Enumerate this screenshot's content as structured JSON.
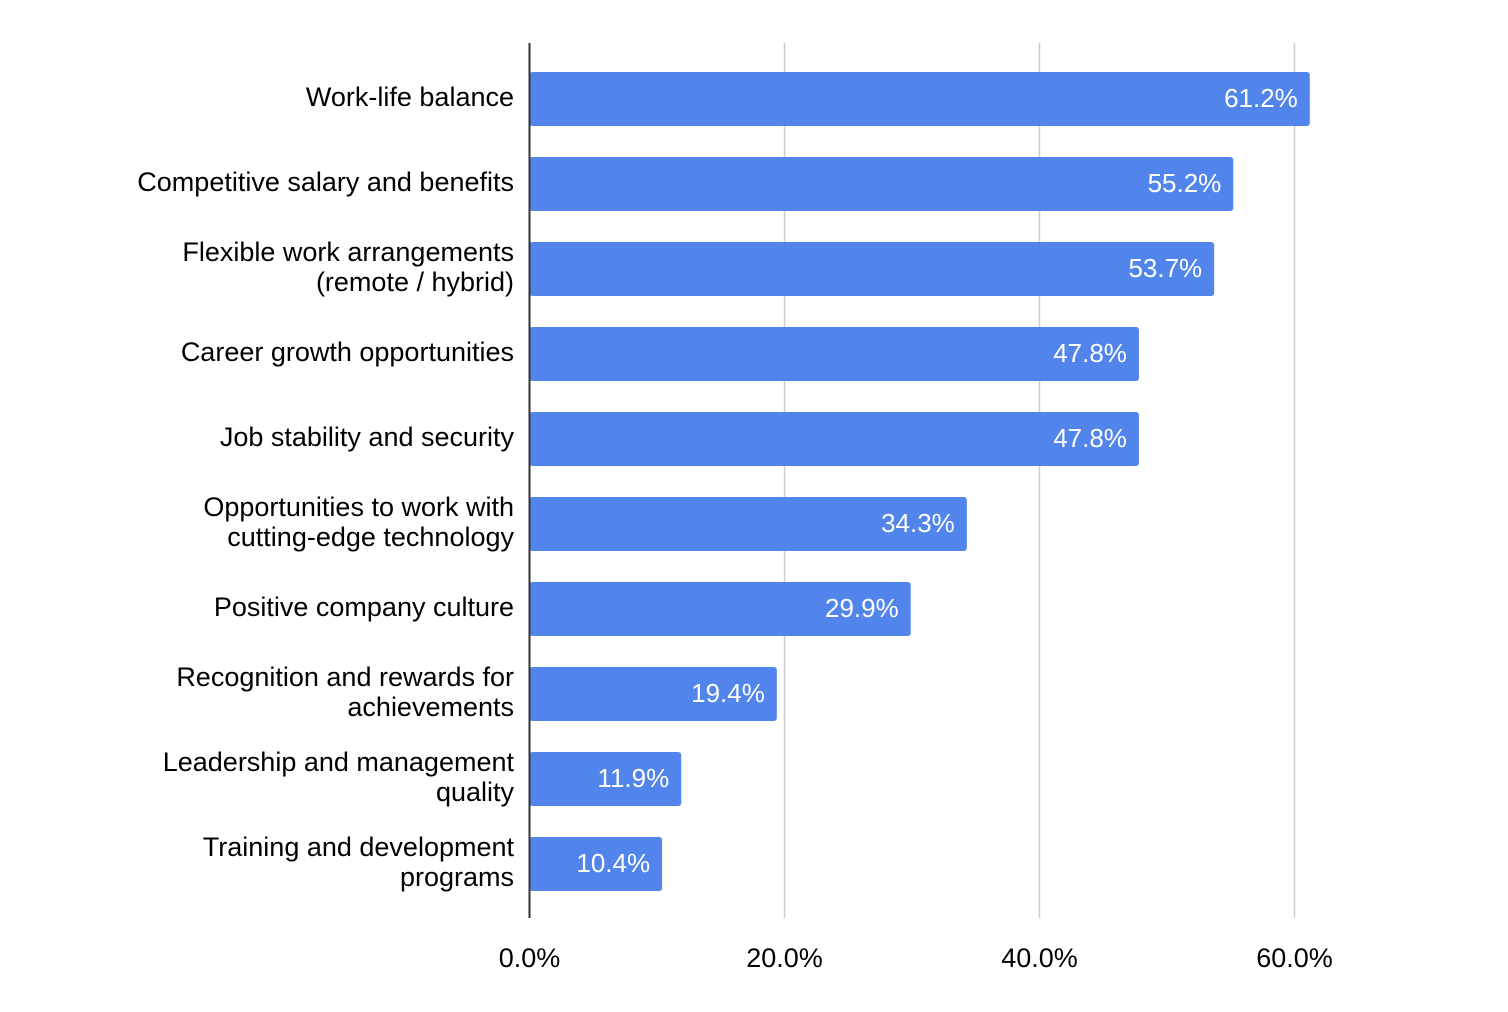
{
  "chart_data": {
    "type": "bar",
    "orientation": "horizontal",
    "categories": [
      "Work-life balance",
      "Competitive salary and benefits",
      "Flexible work arrangements (remote / hybrid)",
      "Career growth opportunities",
      "Job stability and security",
      "Opportunities to work with cutting-edge technology",
      "Positive company culture",
      "Recognition and rewards for achievements",
      "Leadership and management quality",
      "Training and development programs"
    ],
    "category_lines": [
      [
        "Work-life balance"
      ],
      [
        "Competitive salary and benefits"
      ],
      [
        "Flexible work arrangements",
        "(remote / hybrid)"
      ],
      [
        "Career growth opportunities"
      ],
      [
        "Job stability and security"
      ],
      [
        "Opportunities to work with",
        "cutting-edge technology"
      ],
      [
        "Positive company culture"
      ],
      [
        "Recognition and rewards for",
        "achievements"
      ],
      [
        "Leadership and management",
        "quality"
      ],
      [
        "Training and development",
        "programs"
      ]
    ],
    "values": [
      61.2,
      55.2,
      53.7,
      47.8,
      47.8,
      34.3,
      29.9,
      19.4,
      11.9,
      10.4
    ],
    "data_labels": [
      "61.2%",
      "55.2%",
      "53.7%",
      "47.8%",
      "47.8%",
      "34.3%",
      "29.9%",
      "19.4%",
      "11.9%",
      "10.4%"
    ],
    "xticks": [
      0,
      20,
      40,
      60
    ],
    "xtick_labels": [
      "0.0%",
      "20.0%",
      "40.0%",
      "60.0%"
    ],
    "xlim": [
      0,
      60
    ],
    "title": "",
    "xlabel": "",
    "ylabel": "",
    "grid": "vertical",
    "legend": "none",
    "bar_color": "#5185ec",
    "grid_color": "#cccccc",
    "axis_color": "#333333"
  }
}
